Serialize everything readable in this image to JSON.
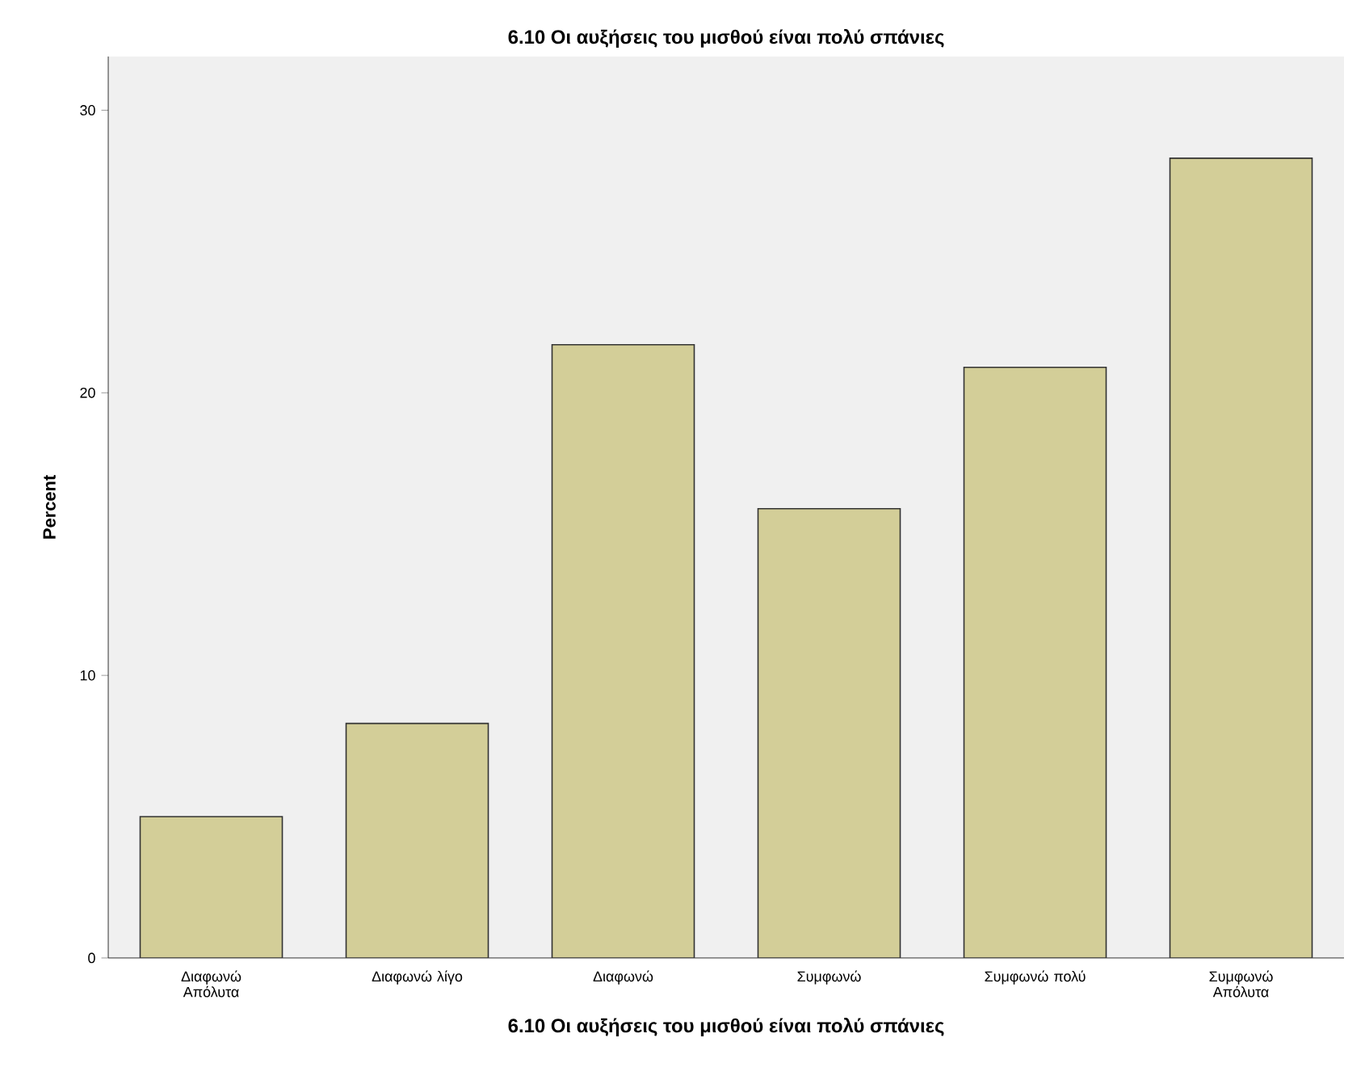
{
  "chart_data": {
    "type": "bar",
    "title": "6.10 Οι αυξήσεις του μισθού είναι πολύ σπάνιες",
    "xlabel": "6.10 Οι αυξήσεις του μισθού είναι πολύ σπάνιες",
    "ylabel": "Percent",
    "categories": [
      "Διαφωνώ Απόλυτα",
      "Διαφωνώ λίγο",
      "Διαφωνώ",
      "Συμφωνώ",
      "Συμφωνώ πολύ",
      "Συμφωνώ Απόλυτα"
    ],
    "values": [
      5.0,
      8.3,
      21.7,
      15.9,
      20.9,
      28.3
    ],
    "color": "#d3ce98",
    "ylim": [
      0,
      31.9
    ],
    "yticks": [
      0,
      10,
      20,
      30
    ],
    "grid": false
  }
}
